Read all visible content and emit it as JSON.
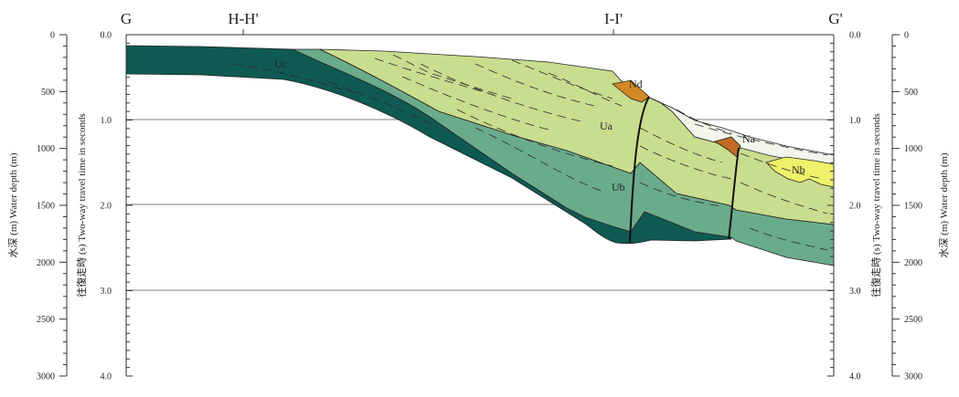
{
  "profile": {
    "top_labels": [
      "G",
      "H-H'",
      "I-I'",
      "G'"
    ],
    "unit_labels": [
      "Uc",
      "Ua",
      "Ub",
      "Nd",
      "Na",
      "Nb"
    ],
    "colors": {
      "Uc": "#0f5a52",
      "Ub": "#6aab8c",
      "Ua": "#c9dd8e",
      "Nd": "#d18a24",
      "Na": "#c06a22",
      "Nb": "#eef16a",
      "upper_drape": "#f1f5ec",
      "outline": "#222222"
    }
  },
  "left_outer_axis": {
    "title": "水深 (m)  Water depth (m)",
    "ticks": [
      "0",
      "500",
      "1000",
      "1500",
      "2000",
      "2500",
      "3000"
    ]
  },
  "left_inner_axis": {
    "title": "往復走時 (s)  Two-way travel time in seconds",
    "ticks": [
      "0.0",
      "1.0",
      "2.0",
      "3.0",
      "4.0"
    ]
  },
  "right_inner_axis": {
    "title": "往復走時 (s)  Two-way travel time in seconds",
    "ticks": [
      "0.0",
      "1.0",
      "2.0",
      "3.0",
      "4.0"
    ]
  },
  "right_outer_axis": {
    "title": "水深 (m)  Water depth (m)",
    "ticks": [
      "0",
      "500",
      "1000",
      "1500",
      "2000",
      "2500",
      "3000"
    ]
  }
}
